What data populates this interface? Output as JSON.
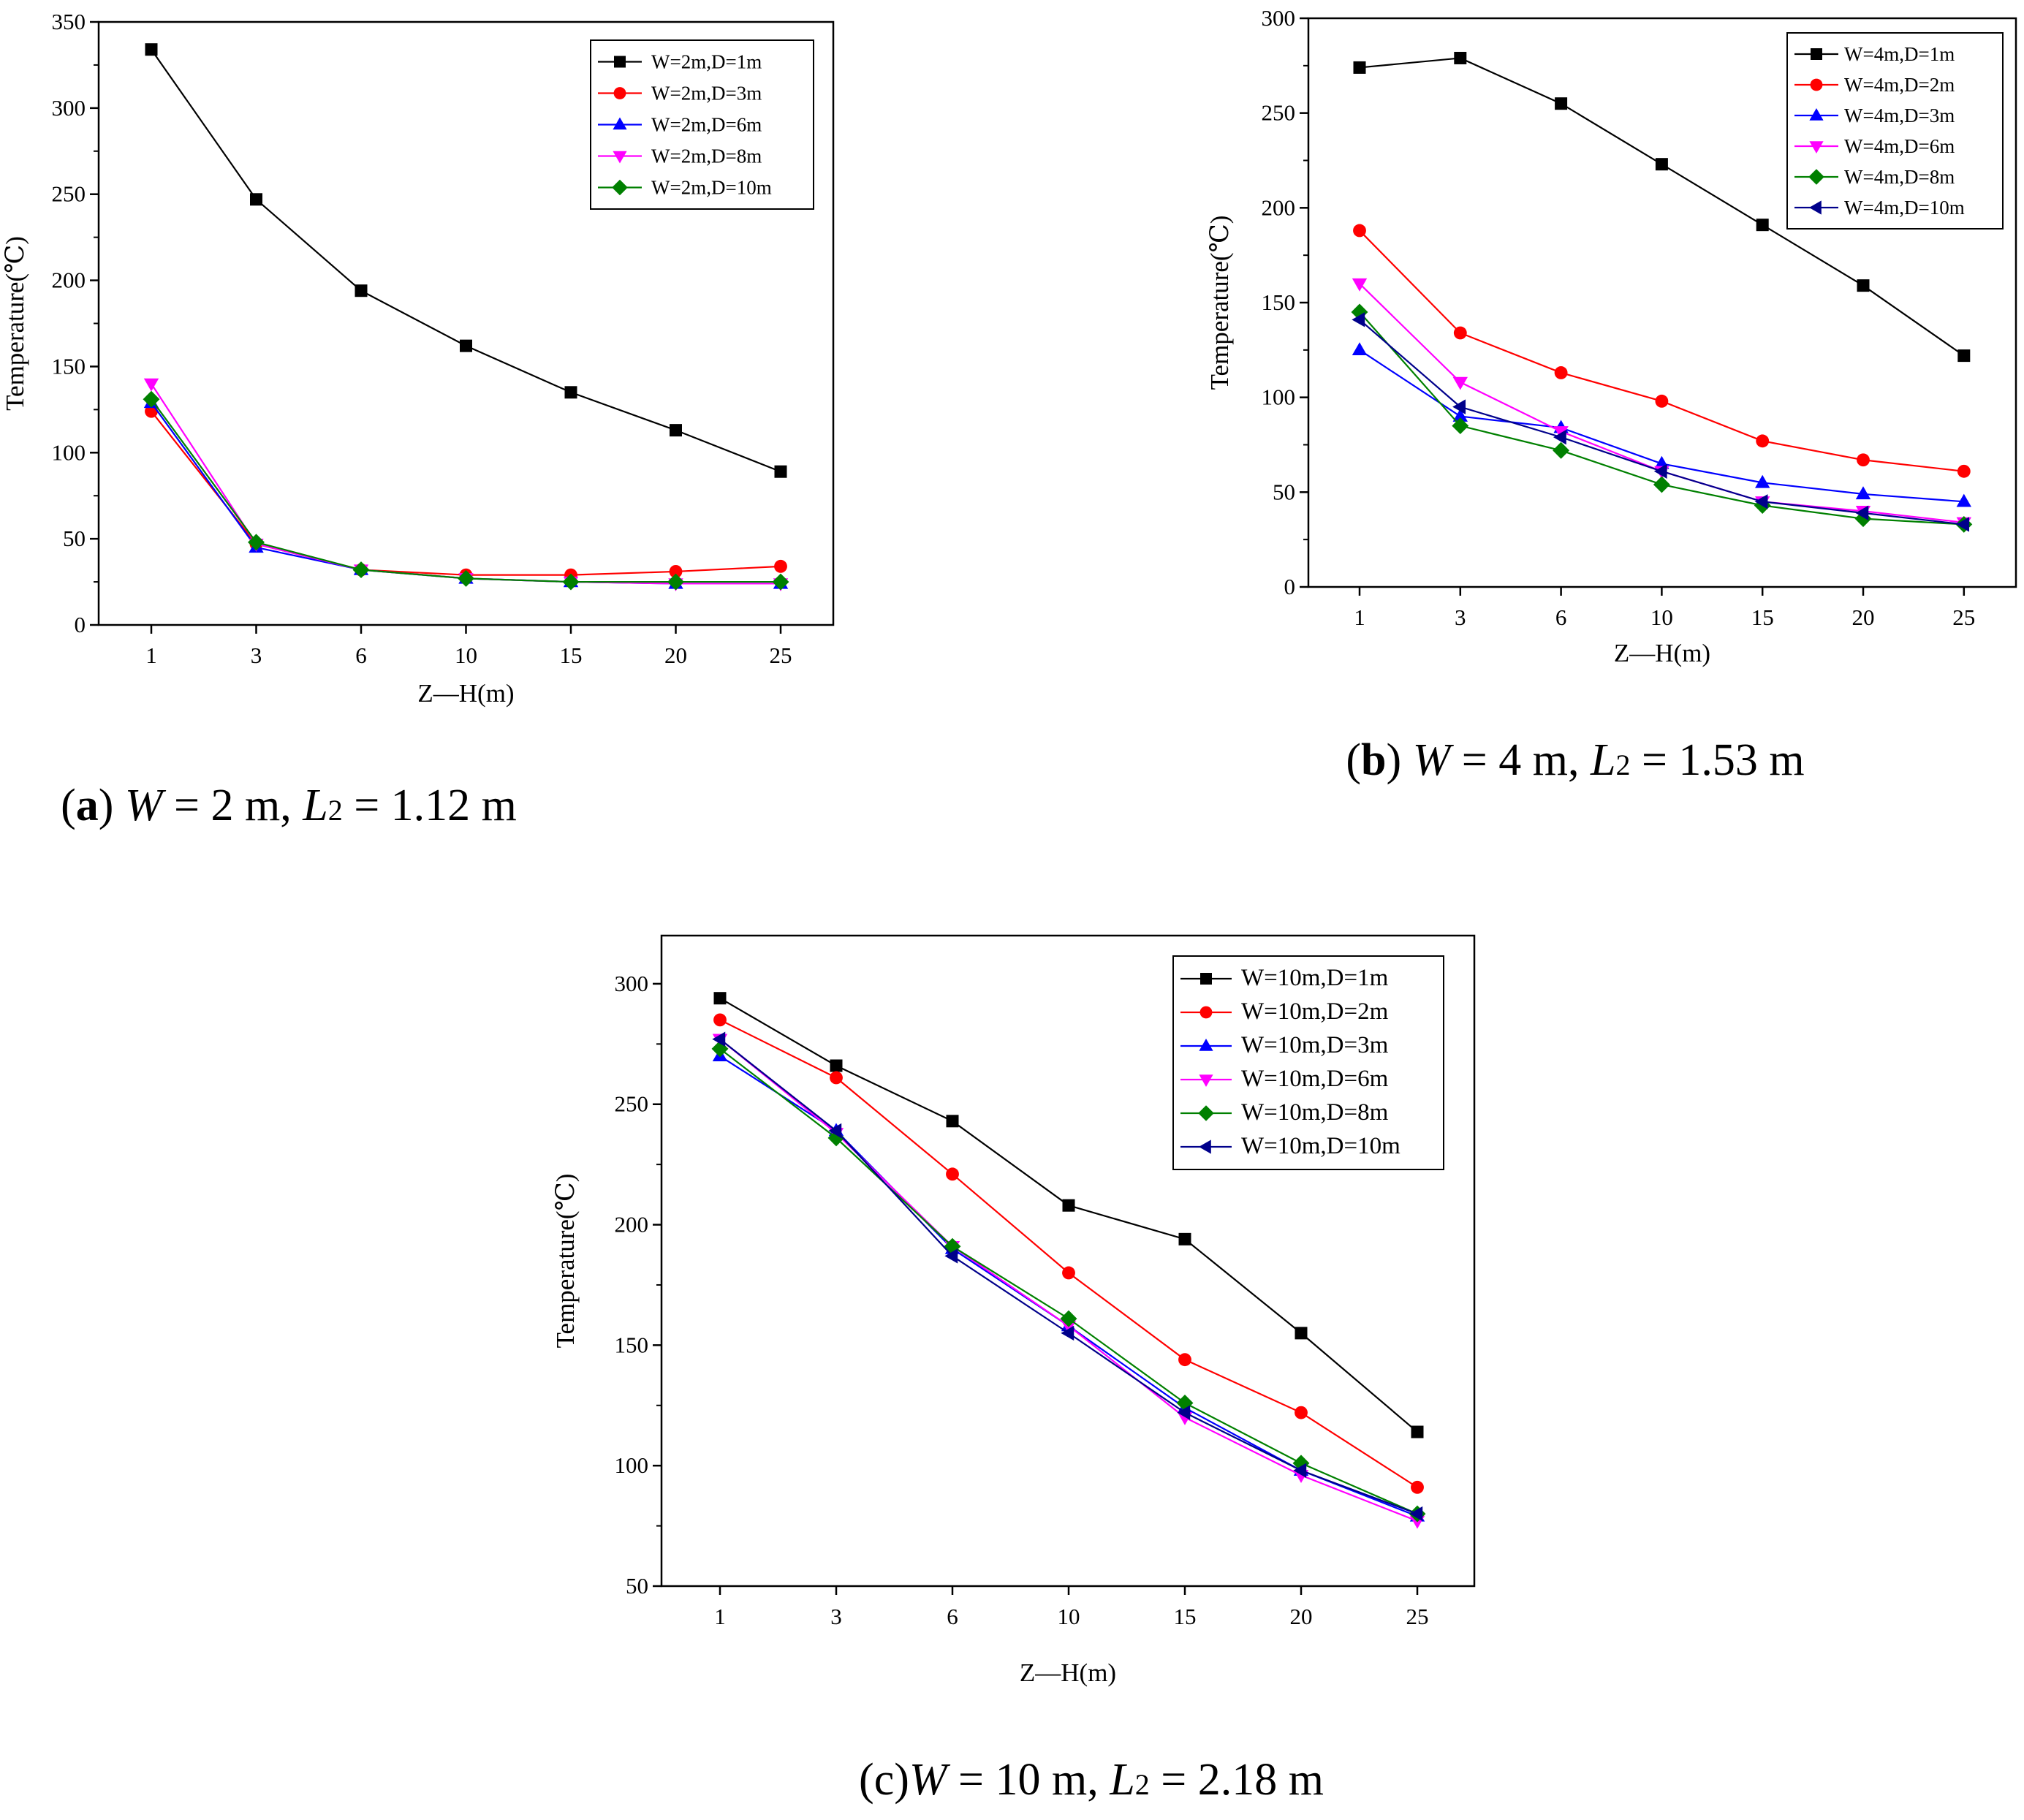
{
  "chart_data": [
    {
      "type": "line",
      "id": "a",
      "caption": {
        "label": "a",
        "w_text": "W",
        "w_value": " = 2 m, ",
        "l_text": "L",
        "l_sub": "2",
        "l_value": " = 1.12 m"
      },
      "xlabel": "Z—H(m)",
      "ylabel": "Temperature(℃)",
      "categories": [
        "1",
        "3",
        "6",
        "10",
        "15",
        "20",
        "25"
      ],
      "ylim": [
        0,
        350
      ],
      "yticks": [
        "0",
        "50",
        "100",
        "150",
        "200",
        "250",
        "300",
        "350"
      ],
      "legend_position": "top-right",
      "series": [
        {
          "name": "W=2m,D=1m",
          "color": "#000000",
          "marker": "square",
          "values": [
            334,
            247,
            194,
            162,
            135,
            113,
            89
          ]
        },
        {
          "name": "W=2m,D=3m",
          "color": "#ff0000",
          "marker": "circle",
          "values": [
            124,
            47,
            32,
            29,
            29,
            31,
            34
          ]
        },
        {
          "name": "W=2m,D=6m",
          "color": "#0000ff",
          "marker": "triangle-up",
          "values": [
            129,
            45,
            32,
            27,
            25,
            24,
            24
          ]
        },
        {
          "name": "W=2m,D=8m",
          "color": "#ff00ff",
          "marker": "triangle-down",
          "values": [
            140,
            47,
            32,
            27,
            25,
            24,
            24
          ]
        },
        {
          "name": "W=2m,D=10m",
          "color": "#008000",
          "marker": "diamond",
          "values": [
            131,
            48,
            32,
            27,
            25,
            25,
            25
          ]
        }
      ]
    },
    {
      "type": "line",
      "id": "b",
      "caption": {
        "label": "b",
        "w_text": "W",
        "w_value": " = 4 m, ",
        "l_text": "L",
        "l_sub": "2",
        "l_value": " = 1.53 m"
      },
      "xlabel": "Z—H(m)",
      "ylabel": "Temperature(℃)",
      "categories": [
        "1",
        "3",
        "6",
        "10",
        "15",
        "20",
        "25"
      ],
      "ylim": [
        0,
        300
      ],
      "yticks": [
        "0",
        "50",
        "100",
        "150",
        "200",
        "250",
        "300"
      ],
      "legend_position": "top-right",
      "series": [
        {
          "name": "W=4m,D=1m",
          "color": "#000000",
          "marker": "square",
          "values": [
            274,
            279,
            255,
            223,
            191,
            159,
            122
          ]
        },
        {
          "name": "W=4m,D=2m",
          "color": "#ff0000",
          "marker": "circle",
          "values": [
            188,
            134,
            113,
            98,
            77,
            67,
            61
          ]
        },
        {
          "name": "W=4m,D=3m",
          "color": "#0000ff",
          "marker": "triangle-up",
          "values": [
            125,
            90,
            84,
            65,
            55,
            49,
            45
          ]
        },
        {
          "name": "W=4m,D=6m",
          "color": "#ff00ff",
          "marker": "triangle-down",
          "values": [
            160,
            108,
            82,
            61,
            45,
            40,
            34
          ]
        },
        {
          "name": "W=4m,D=8m",
          "color": "#008000",
          "marker": "diamond",
          "values": [
            145,
            85,
            72,
            54,
            43,
            36,
            33
          ]
        },
        {
          "name": "W=4m,D=10m",
          "color": "#00008b",
          "marker": "triangle-left",
          "values": [
            141,
            95,
            79,
            61,
            45,
            39,
            33
          ]
        }
      ]
    },
    {
      "type": "line",
      "id": "c",
      "caption": {
        "label": "c",
        "w_text": "W",
        "w_value": " = 10 m, ",
        "l_text": "L",
        "l_sub": "2",
        "l_value": " = 2.18 m"
      },
      "xlabel": "Z—H(m)",
      "ylabel": "Temperature(℃)",
      "categories": [
        "1",
        "3",
        "6",
        "10",
        "15",
        "20",
        "25"
      ],
      "ylim": [
        50,
        320
      ],
      "yticks": [
        "50",
        "100",
        "150",
        "200",
        "250",
        "300"
      ],
      "legend_position": "top-right",
      "series": [
        {
          "name": "W=10m,D=1m",
          "color": "#000000",
          "marker": "square",
          "values": [
            294,
            266,
            243,
            208,
            194,
            155,
            114
          ]
        },
        {
          "name": "W=10m,D=2m",
          "color": "#ff0000",
          "marker": "circle",
          "values": [
            285,
            261,
            221,
            180,
            144,
            122,
            91
          ]
        },
        {
          "name": "W=10m,D=3m",
          "color": "#0000ff",
          "marker": "triangle-up",
          "values": [
            270,
            239,
            190,
            158,
            124,
            98,
            79
          ]
        },
        {
          "name": "W=10m,D=6m",
          "color": "#ff00ff",
          "marker": "triangle-down",
          "values": [
            277,
            238,
            191,
            158,
            120,
            96,
            77
          ]
        },
        {
          "name": "W=10m,D=8m",
          "color": "#008000",
          "marker": "diamond",
          "values": [
            273,
            236,
            191,
            161,
            126,
            101,
            80
          ]
        },
        {
          "name": "W=10m,D=10m",
          "color": "#00008b",
          "marker": "triangle-left",
          "values": [
            277,
            239,
            187,
            155,
            122,
            98,
            80
          ]
        }
      ]
    }
  ]
}
